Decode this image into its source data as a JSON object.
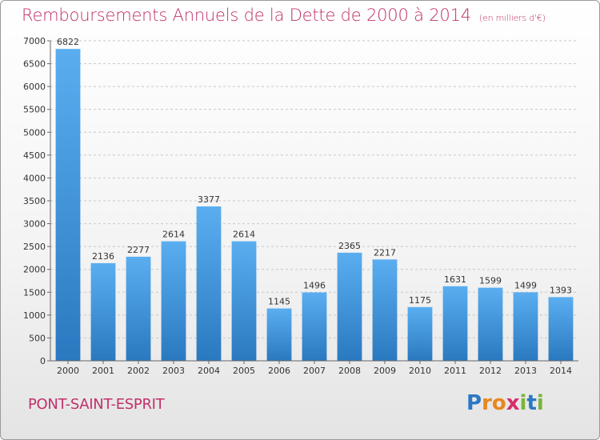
{
  "chart_data": {
    "type": "bar",
    "title": "Remboursements Annuels de la Dette de 2000 à 2014",
    "unit_note": "(en milliers d'€)",
    "categories": [
      "2000",
      "2001",
      "2002",
      "2003",
      "2004",
      "2005",
      "2006",
      "2007",
      "2008",
      "2009",
      "2010",
      "2011",
      "2012",
      "2013",
      "2014"
    ],
    "values": [
      6822,
      2136,
      2277,
      2614,
      3377,
      2614,
      1145,
      1496,
      2365,
      2217,
      1175,
      1631,
      1599,
      1499,
      1393
    ],
    "ylim": [
      0,
      7000
    ],
    "yticks": [
      "0",
      "500",
      "1000",
      "1500",
      "2000",
      "2500",
      "3000",
      "3500",
      "4000",
      "4500",
      "5000",
      "5500",
      "6000",
      "6500",
      "7000"
    ],
    "grid": true,
    "bar_color": "#3a8fd6"
  },
  "footer": {
    "commune": "PONT-SAINT-ESPRIT",
    "logo_letters": [
      "P",
      "r",
      "o",
      "x",
      "i",
      "t",
      "i"
    ],
    "logo_colors": [
      "#2b78c4",
      "#e8871e",
      "#e8871e",
      "#d62d6a",
      "#7bb33a",
      "#2b78c4",
      "#7bb33a"
    ]
  }
}
